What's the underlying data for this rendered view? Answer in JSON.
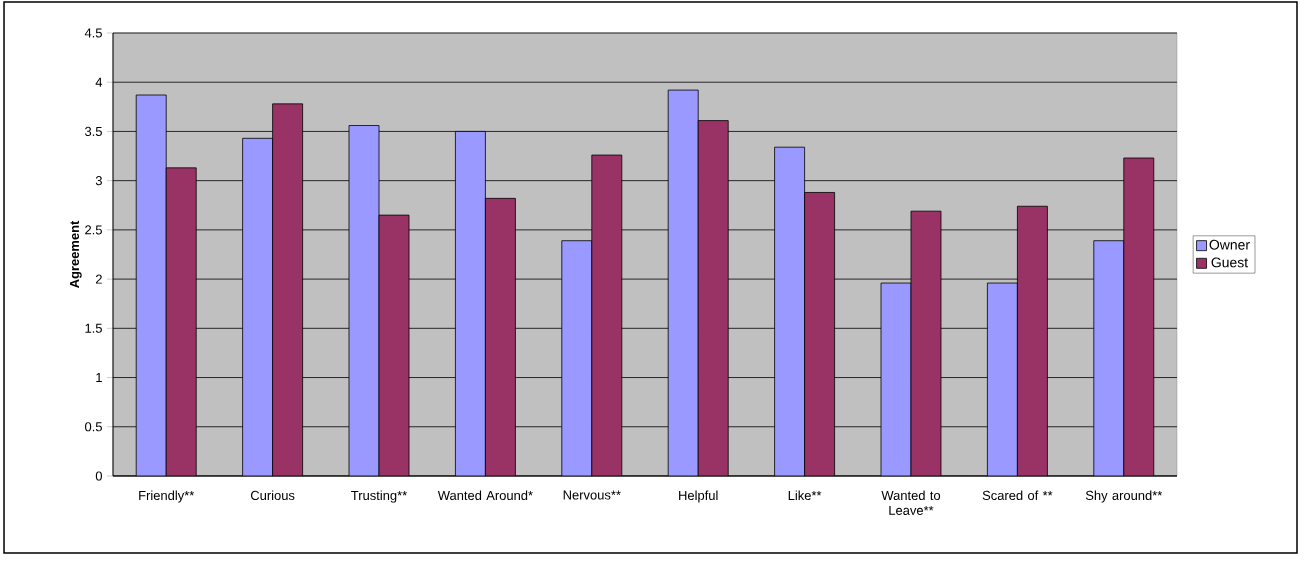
{
  "chart_data": {
    "type": "bar",
    "ylabel": "Agreement",
    "categories": [
      "Friendly**",
      "Curious",
      "Trusting**",
      "Wanted Around*",
      "Nervous**",
      "Helpful",
      "Like**",
      "Wanted to Leave**",
      "Scared of **",
      "Shy around**"
    ],
    "series": [
      {
        "name": "Owner",
        "color": "#9999ff",
        "values": [
          3.87,
          3.43,
          3.56,
          3.5,
          2.39,
          3.92,
          3.34,
          1.96,
          1.96,
          2.39
        ]
      },
      {
        "name": "Guest",
        "color": "#993366",
        "values": [
          3.13,
          3.78,
          2.65,
          2.82,
          3.26,
          3.61,
          2.88,
          2.69,
          2.74,
          3.23
        ]
      }
    ],
    "ylim": [
      0,
      4.5
    ],
    "yticks": [
      0,
      0.5,
      1,
      1.5,
      2,
      2.5,
      3,
      3.5,
      4,
      4.5
    ],
    "grid": "y",
    "legend": "right"
  }
}
